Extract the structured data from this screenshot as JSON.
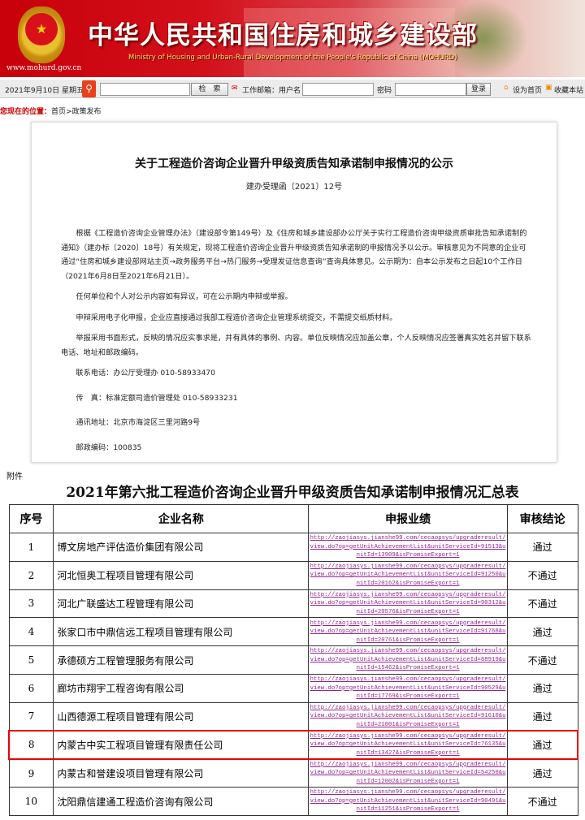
{
  "header": {
    "title": "中华人民共和国住房和城乡建设部",
    "subtitle": "Ministry of Housing and Urban-Rural Development of the People's Republic of China (MOHURD)",
    "url": "www.mohurd.gov.cn",
    "emblem_icon": "national-emblem"
  },
  "toolbar": {
    "date": "2021年9月10日 星期五",
    "search_button": "检　索",
    "mail_label": "工作邮箱：用户名",
    "password_label": "密码",
    "login_button": "登录",
    "set_home": "设为首页",
    "bookmark": "收藏本站",
    "search_value": "",
    "username_value": "",
    "password_value": ""
  },
  "breadcrumb": {
    "label": "您现在的位置：",
    "path": "首页>政策发布"
  },
  "doc": {
    "title": "关于工程造价咨询企业晋升甲级资质告知承诺制申报情况的公示",
    "number": "建办受理函〔2021〕12号",
    "paragraphs": [
      "根据《工程造价咨询企业管理办法》（建设部令第149号）及《住房和城乡建设部办公厅关于实行工程造价咨询甲级资质审批告知承诺制的通知》（建办标〔2020〕18号）有关规定，现将工程造价咨询企业晋升甲级资质告知承诺制的申报情况予以公示。审核意见为不同意的企业可通过“住房和城乡建设部网站主页→政务服务平台→热门服务→受理发证信息查询”查询具体意见。公示期为：自本公示发布之日起10个工作日（2021年6月8日至2021年6月21日）。",
      "任何单位和个人对公示内容如有异议，可在公示期内申辩或举报。",
      "申辩采用电子化申报，企业应直接通过我部工程造价咨询企业管理系统提交，不需提交纸质材料。",
      "举报采用书面形式，反映的情况应实事求是，并有具体的事例、内容。单位反映情况应加盖公章，个人反映情况应签署真实姓名并留下联系电话、地址和邮政编码。"
    ],
    "contacts": [
      "联系电话：办公厅受理办 010-58933470",
      "传　真：标准定额司造价管理处 010-58933231",
      "通讯地址：北京市海淀区三里河路9号",
      "邮政编码：100835"
    ]
  },
  "attachment": {
    "label": "附件",
    "table_title": "2021年第六批工程造价咨询企业晋升甲级资质告知承诺制申报情况汇总表",
    "headers": [
      "序号",
      "企业名称",
      "申报业绩",
      "审核结论"
    ],
    "highlight_color": "#e00000",
    "link_color": "#93258f",
    "rows": [
      {
        "no": "1",
        "name": "博文房地产评估造价集团有限公司",
        "link": "http://zaojiasys.jianshe99.com/cecaopsys/upgraderesult/view.do?op=getUnitAchievementList&unitServiceId=91513&unitId=13909&isPromiseExport=1",
        "result": "通过"
      },
      {
        "no": "2",
        "name": "河北恒奥工程项目管理有限公司",
        "link": "http://zaojiasys.jianshe99.com/cecaopsys/upgraderesult/view.do?op=getUnitAchievementList&unitServiceId=91250&unitId=20162&isPromiseExport=1",
        "result": "不通过"
      },
      {
        "no": "3",
        "name": "河北广联盛达工程管理有限公司",
        "link": "http://zaojiasys.jianshe99.com/cecaopsys/upgraderesult/view.do?op=getUnitAchievementList&unitServiceId=90312&unitId=20576&isPromiseExport=1",
        "result": "不通过"
      },
      {
        "no": "4",
        "name": "张家口市中鼎信远工程项目管理有限公司",
        "link": "http://zaojiasys.jianshe99.com/cecaopsys/upgraderesult/view.do?op=getUnitAchievementList&unitServiceId=91768&unitId=20761&isPromiseExport=1",
        "result": "通过"
      },
      {
        "no": "5",
        "name": "承德硕方工程管理服务有限公司",
        "link": "http://zaojiasys.jianshe99.com/cecaopsys/upgraderesult/view.do?op=getUnitAchievementList&unitServiceId=88919&unitId=15462&isPromiseExport=1",
        "result": "不通过"
      },
      {
        "no": "6",
        "name": "廊坊市翔宇工程咨询有限公司",
        "link": "http://zaojiasys.jianshe99.com/cecaopsys/upgraderesult/view.do?op=getUnitAchievementList&unitServiceId=90529&unitId=17769&isPromiseExport=1",
        "result": "通过"
      },
      {
        "no": "7",
        "name": "山西德源工程项目管理有限公司",
        "link": "http://zaojiasys.jianshe99.com/cecaopsys/upgraderesult/view.do?op=getUnitAchievementList&unitServiceId=91610&unitId=21001&isPromiseExport=1",
        "result": "通过"
      },
      {
        "no": "8",
        "name": "内蒙古中实工程项目管理有限责任公司",
        "link": "http://zaojiasys.jianshe99.com/cecaopsys/upgraderesult/view.do?op=getUnitAchievementList&unitServiceId=76135&unitId=13427&isPromiseExport=1",
        "result": "通过",
        "highlighted": true
      },
      {
        "no": "9",
        "name": "内蒙古和誉建设项目管理有限公司",
        "link": "http://zaojiasys.jianshe99.com/cecaopsys/upgraderesult/view.do?op=getUnitAchievementList&unitServiceId=54250&unitId=12002&isPromiseExport=1",
        "result": "通过"
      },
      {
        "no": "10",
        "name": "沈阳鼎信建通工程造价咨询有限公司",
        "link": "http://zaojiasys.jianshe99.com/cecaopsys/upgraderesult/view.do?op=getUnitAchievementList&unitServiceId=90491&unitId=11251&isPromiseExport=1",
        "result": "不通过"
      }
    ]
  }
}
